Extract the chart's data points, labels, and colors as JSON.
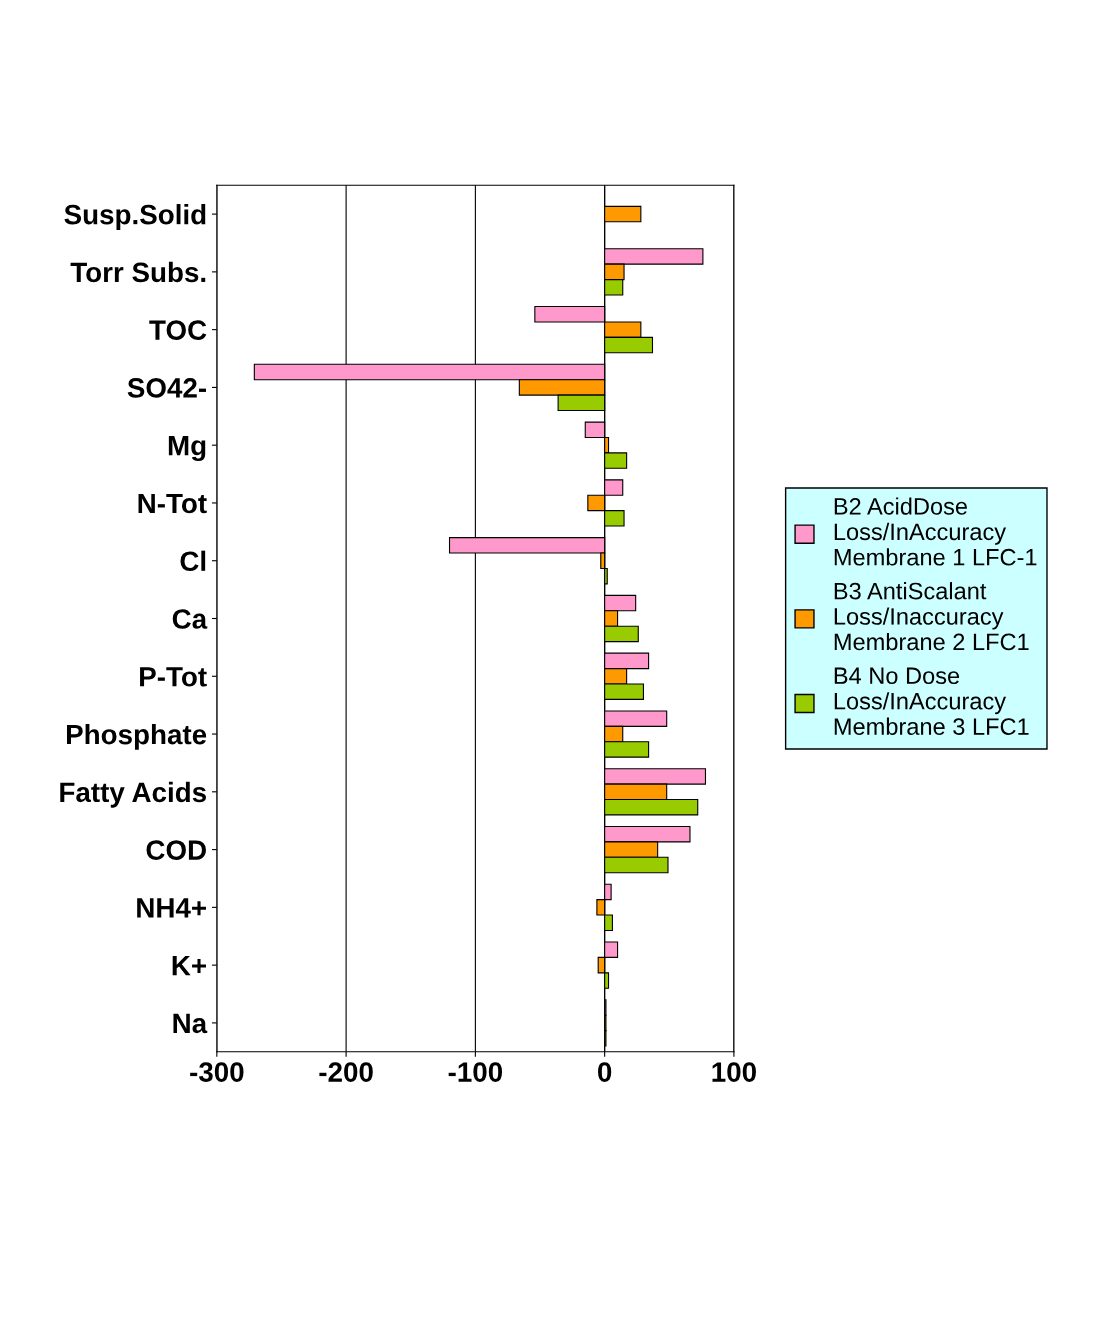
{
  "chart_data": {
    "type": "bar",
    "orientation": "horizontal",
    "categories": [
      "Susp.Solid",
      "Torr Subs.",
      "TOC",
      "SO42-",
      "Mg",
      "N-Tot",
      "Cl",
      "Ca",
      "P-Tot",
      "Phosphate",
      "Fatty Acids",
      "COD",
      "NH4+",
      "K+",
      "Na"
    ],
    "series": [
      {
        "name": "B2 AcidDose Loss/InAccuracy Membrane 1 LFC-1",
        "color": "#ff99cc",
        "values": [
          null,
          76,
          -54,
          -271,
          -15,
          14,
          -120,
          24,
          34,
          48,
          78,
          66,
          5,
          10,
          1
        ]
      },
      {
        "name": "B3 AntiScalant Loss/Inaccuracy Membrane 2 LFC1",
        "color": "#ff9900",
        "values": [
          28,
          15,
          28,
          -66,
          3,
          -13,
          -3,
          10,
          17,
          14,
          48,
          41,
          -6,
          -5,
          1
        ]
      },
      {
        "name": "B4 No Dose Loss/InAccuracy Membrane 3 LFC1",
        "color": "#99cc00",
        "values": [
          null,
          14,
          37,
          -36,
          17,
          15,
          2,
          26,
          30,
          34,
          72,
          49,
          6,
          3,
          1
        ]
      }
    ],
    "xlim": [
      -300,
      100
    ],
    "xticks": [
      -300,
      -200,
      -100,
      0,
      100
    ],
    "grid": "x",
    "legend": "right"
  }
}
